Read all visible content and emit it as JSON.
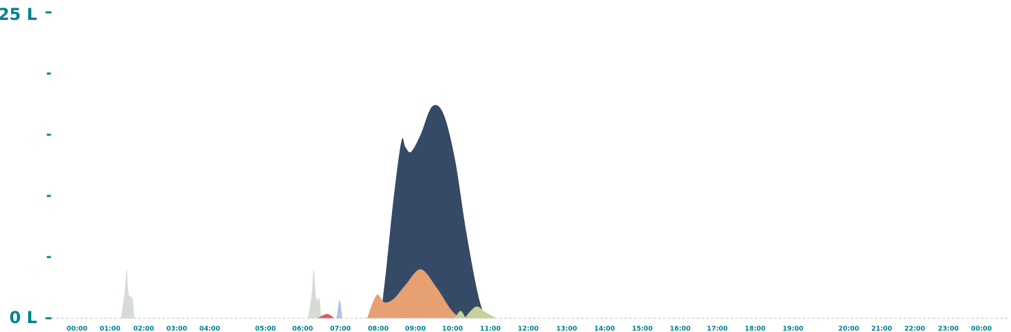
{
  "colors": {
    "axis": "#00838f",
    "baseline": "#c8ccd0",
    "dark_blue": "#344a66",
    "orange": "#e6a072",
    "grey": "#d5dcd5",
    "red": "#e05a5a",
    "light_blue": "#aec4e6",
    "olive": "#c5d39a"
  },
  "chart_data": {
    "type": "area",
    "ylabel_top": "25 L",
    "ylabel_bottom": "0 L",
    "ylim": [
      0,
      25
    ],
    "y_minor_ticks": [
      5,
      10,
      15,
      20
    ],
    "xlim": [
      0,
      24
    ],
    "x_tick_labels": [
      "00:00",
      "01:00",
      "02:00",
      "03:00",
      "04:00",
      "05:00",
      "06:00",
      "07:00",
      "08:00",
      "09:00",
      "10:00",
      "11:00",
      "12:00",
      "13:00",
      "14:00",
      "15:00",
      "16:00",
      "17:00",
      "18:00",
      "19:00",
      "20:00",
      "21:00",
      "22:00",
      "23:00",
      "00:00"
    ],
    "grid": false,
    "series": [
      {
        "color_key": "grey",
        "x": [
          1.15,
          1.25,
          1.3,
          1.35,
          1.45,
          1.5
        ],
        "y": [
          0,
          2.2,
          4.0,
          2.0,
          1.6,
          0
        ]
      },
      {
        "color_key": "grey",
        "x": [
          6.05,
          6.15,
          6.2,
          6.27,
          6.35,
          6.4
        ],
        "y": [
          0,
          2.0,
          4.0,
          1.6,
          1.6,
          0
        ]
      },
      {
        "color_key": "red",
        "x": [
          6.3,
          6.55,
          6.75
        ],
        "y": [
          0,
          0.35,
          0
        ]
      },
      {
        "color_key": "light_blue",
        "x": [
          6.8,
          6.88,
          6.95
        ],
        "y": [
          0,
          1.5,
          0
        ]
      },
      {
        "color_key": "dark_blue",
        "x": [
          7.95,
          8.1,
          8.3,
          8.5,
          8.6,
          8.75,
          9.0,
          9.3,
          9.6,
          9.9,
          10.2,
          10.5,
          10.7
        ],
        "y": [
          0,
          4.0,
          10.0,
          14.5,
          14.0,
          13.6,
          15.0,
          17.3,
          16.7,
          13.0,
          7.0,
          2.0,
          0
        ]
      },
      {
        "color_key": "orange",
        "x": [
          7.6,
          7.85,
          8.05,
          8.3,
          8.6,
          9.0,
          9.4,
          9.8,
          10.05
        ],
        "y": [
          0,
          1.9,
          1.3,
          1.6,
          2.7,
          4.0,
          2.6,
          0.7,
          0
        ]
      },
      {
        "color_key": "olive",
        "x": [
          9.9,
          10.05,
          10.18
        ],
        "y": [
          0,
          0.6,
          0
        ]
      },
      {
        "color_key": "olive",
        "x": [
          10.15,
          10.45,
          10.7,
          11.0
        ],
        "y": [
          0,
          0.95,
          0.5,
          0
        ]
      }
    ]
  }
}
